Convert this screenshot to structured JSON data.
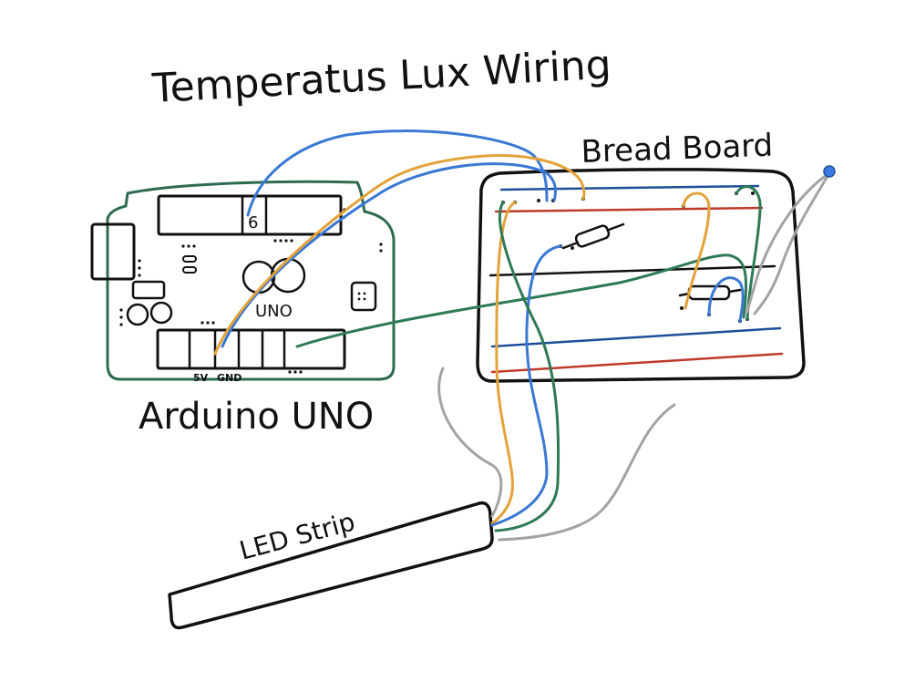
{
  "title": "Temperatus Lux Wiring",
  "labels": {
    "breadboard": "Bread Board",
    "arduino": "Arduino UNO",
    "uno_mark": "UNO",
    "pin6": "6",
    "pin5v": "5V",
    "pingnd": "GND",
    "led_strip": "LED Strip"
  },
  "colors": {
    "arduino_outline": "#2e6b4e",
    "wire_blue": "#3a78d4",
    "wire_orange": "#e3a23a",
    "wire_green": "#2e7a56",
    "wire_gray": "#a3a3a3",
    "rail_red": "#c0392b",
    "rail_blue": "#1f4f99",
    "ink": "#111111",
    "led_bulb": "#3a7ae0"
  }
}
